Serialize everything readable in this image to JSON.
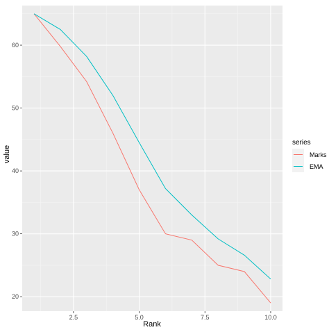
{
  "chart_data": {
    "type": "line",
    "xlabel": "Rank",
    "ylabel": "value",
    "xlim": [
      0.55,
      10.45
    ],
    "ylim": [
      17.7,
      66.3
    ],
    "x_ticks": [
      2.5,
      5.0,
      7.5,
      10.0
    ],
    "x_tick_labels": [
      "2.5",
      "5.0",
      "7.5",
      "10.0"
    ],
    "y_ticks": [
      20,
      30,
      40,
      50,
      60
    ],
    "y_tick_labels": [
      "20",
      "30",
      "40",
      "50",
      "60"
    ],
    "grid": true,
    "background": "#ebebeb",
    "legend": {
      "title": "series",
      "position": "right"
    },
    "x": [
      1,
      2,
      3,
      4,
      5,
      6,
      7,
      8,
      9,
      10
    ],
    "series": [
      {
        "name": "Marks",
        "color": "#f8766d",
        "values": [
          65,
          59.8,
          54.2,
          46,
          37,
          30,
          29,
          25,
          24,
          19
        ]
      },
      {
        "name": "EMA",
        "color": "#00bfc4",
        "values": [
          65,
          62.5,
          58.2,
          52,
          44.5,
          37.2,
          33,
          29.2,
          26.6,
          22.8
        ]
      }
    ]
  }
}
